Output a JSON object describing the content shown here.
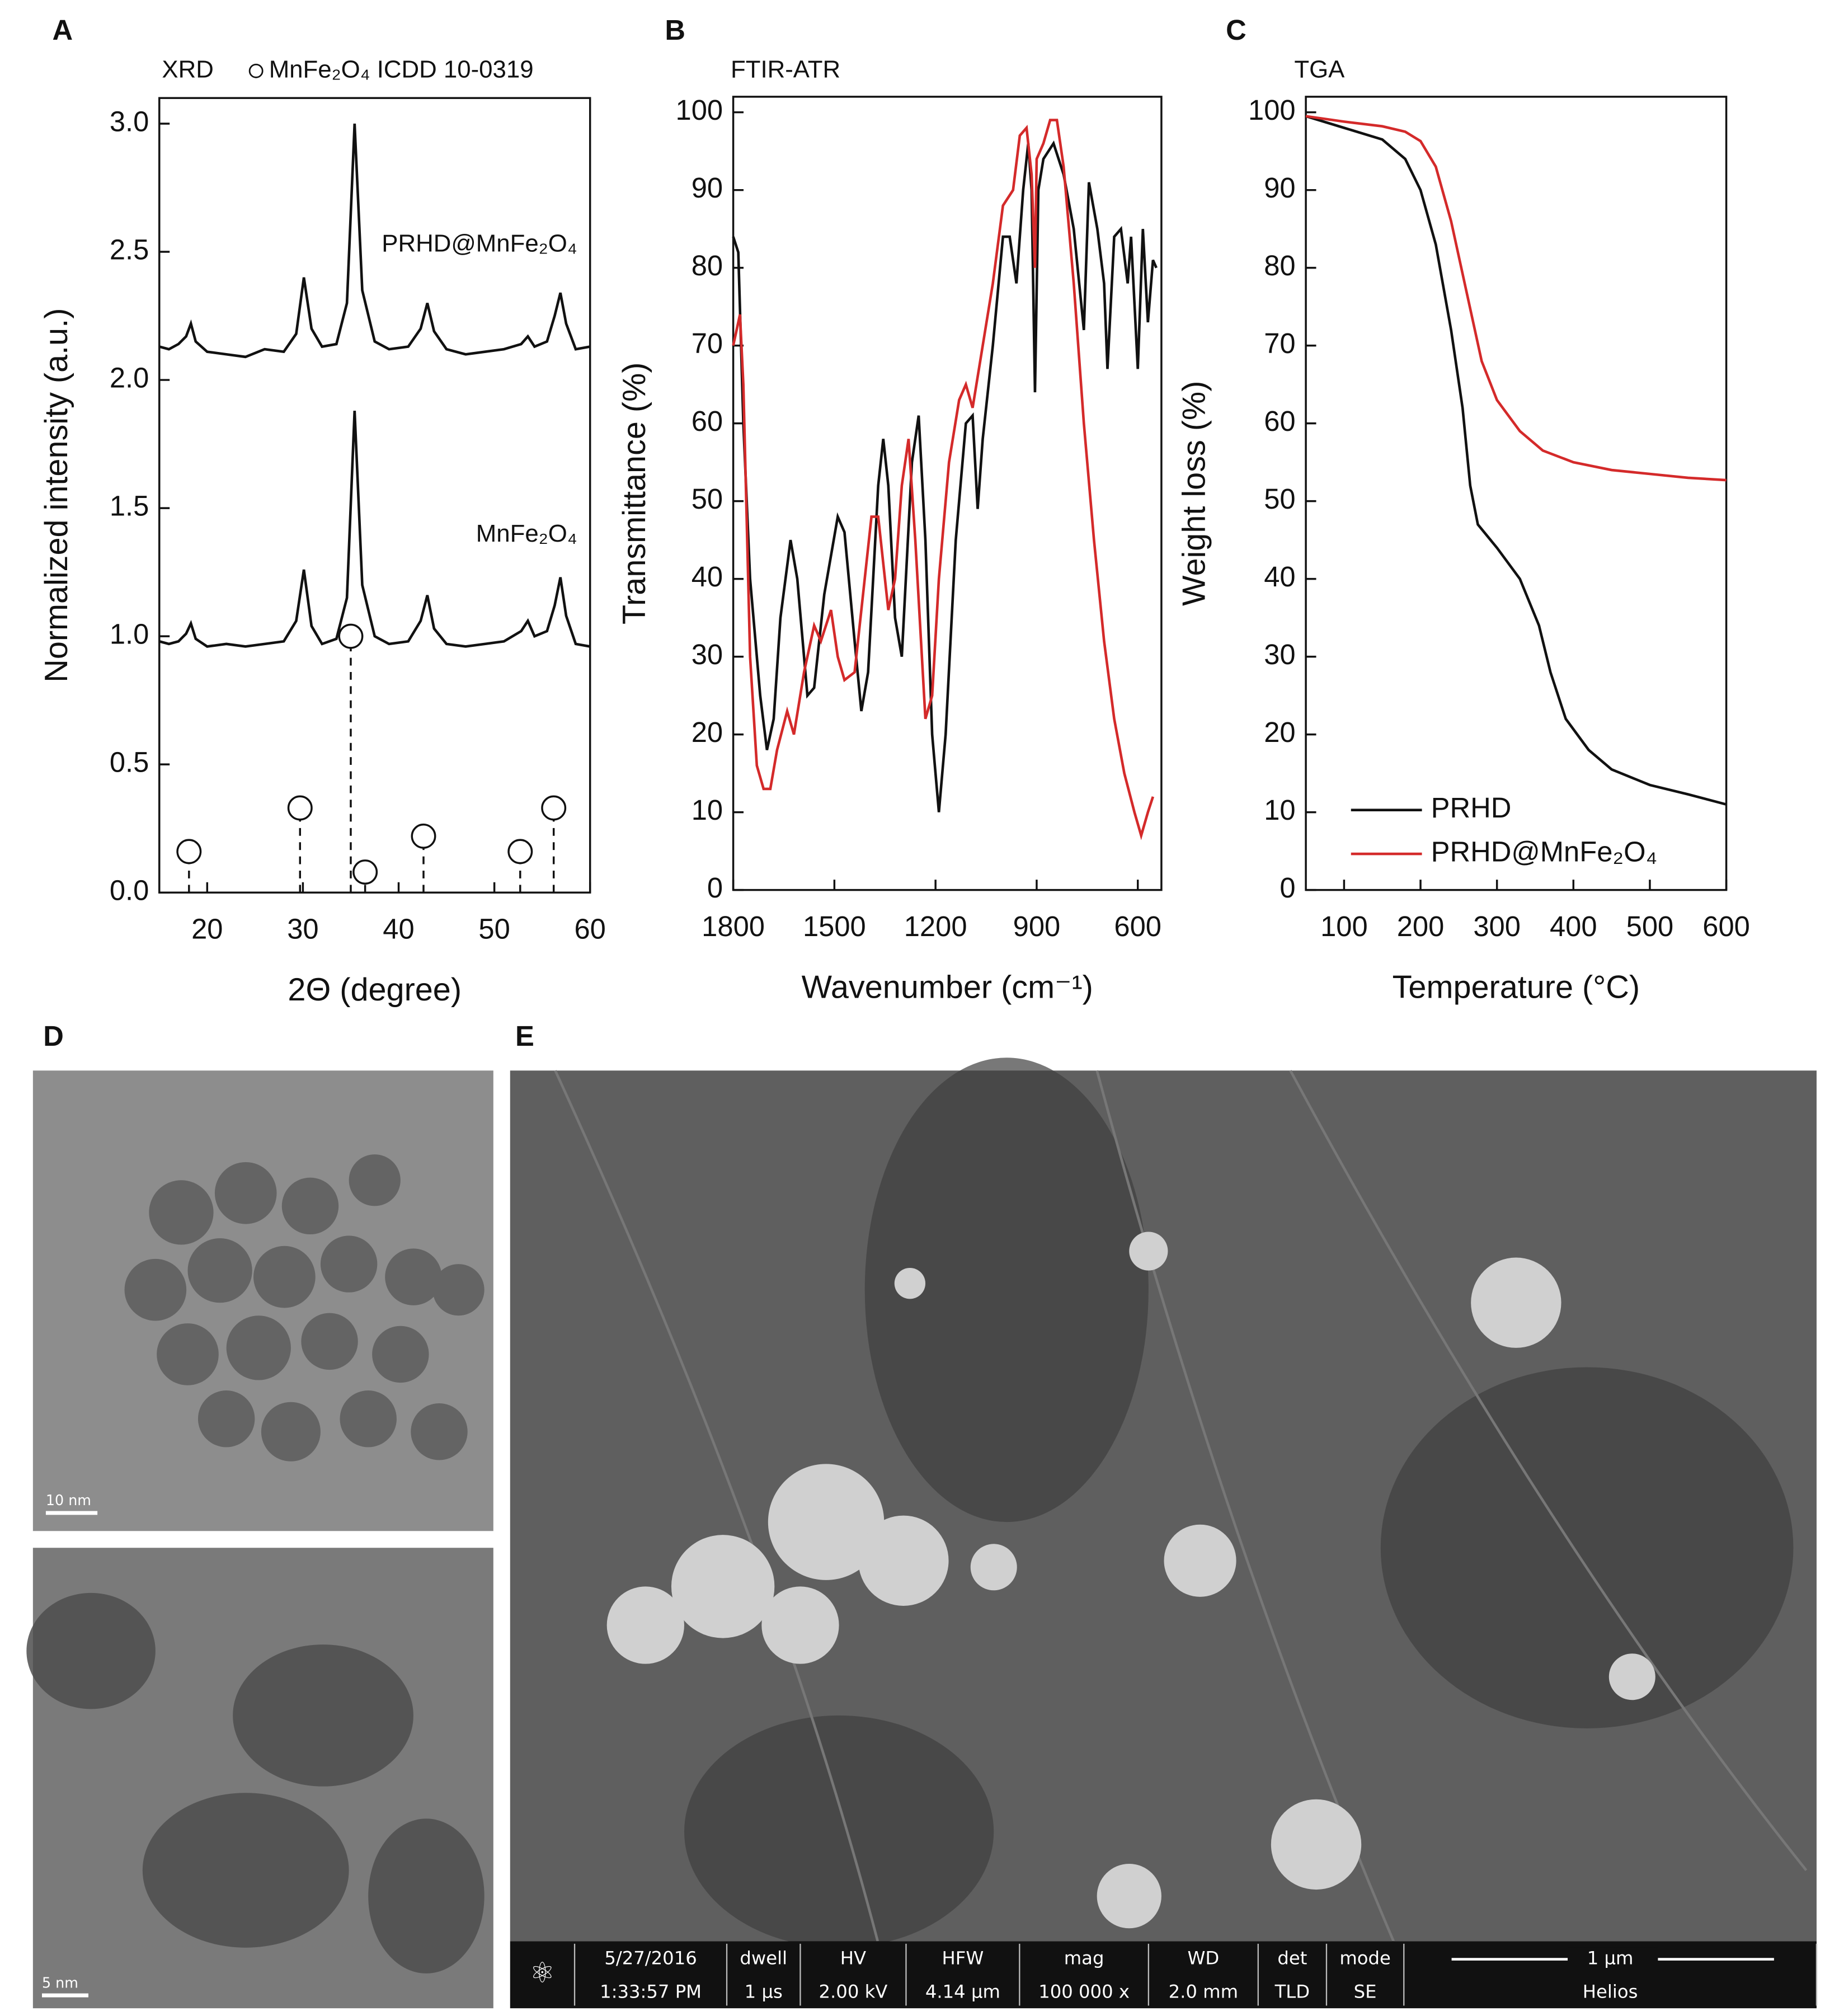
{
  "chart_data": [
    {
      "type": "line",
      "panel": "A",
      "title": "XRD",
      "xlabel": "2Θ (degree)",
      "ylabel": "Normalized intensity (a.u.)",
      "xlim": [
        15,
        60
      ],
      "xticks": [
        20,
        30,
        40,
        50,
        60
      ],
      "ylim": [
        0,
        3.1
      ],
      "yticks": [
        {
          "value": 0,
          "label": "0.0"
        },
        0.5,
        {
          "value": 1,
          "label": "1.0"
        },
        1.5,
        {
          "value": 2,
          "label": "2.0"
        },
        2.5,
        {
          "value": 3,
          "label": "3.0"
        }
      ],
      "series": [
        {
          "name": "PRHD@MnFe₂O₄",
          "color": "#111111",
          "x": [
            15,
            16,
            17,
            17.8,
            18.3,
            18.8,
            20,
            22,
            24,
            26,
            28,
            29.3,
            30.1,
            30.9,
            32,
            33.5,
            34.6,
            35.4,
            36.2,
            37.5,
            39,
            41,
            42.3,
            43,
            43.7,
            45,
            47,
            49,
            51,
            52.8,
            53.5,
            54.2,
            55.5,
            56.3,
            56.9,
            57.5,
            58.5,
            60
          ],
          "values": [
            2.13,
            2.12,
            2.14,
            2.17,
            2.22,
            2.15,
            2.11,
            2.1,
            2.09,
            2.12,
            2.11,
            2.18,
            2.4,
            2.2,
            2.13,
            2.14,
            2.3,
            3.0,
            2.35,
            2.15,
            2.12,
            2.13,
            2.2,
            2.3,
            2.19,
            2.12,
            2.1,
            2.11,
            2.12,
            2.14,
            2.17,
            2.13,
            2.15,
            2.25,
            2.34,
            2.22,
            2.12,
            2.13
          ]
        },
        {
          "name": "MnFe₂O₄",
          "color": "#111111",
          "x": [
            15,
            16,
            17,
            17.8,
            18.3,
            18.8,
            20,
            22,
            24,
            26,
            28,
            29.3,
            30.1,
            30.9,
            32,
            33.5,
            34.6,
            35.4,
            36.2,
            37.5,
            39,
            41,
            42.3,
            43,
            43.7,
            45,
            47,
            49,
            51,
            52.8,
            53.5,
            54.2,
            55.5,
            56.3,
            56.9,
            57.5,
            58.5,
            60
          ],
          "values": [
            0.98,
            0.97,
            0.98,
            1.01,
            1.05,
            0.99,
            0.96,
            0.97,
            0.96,
            0.97,
            0.98,
            1.06,
            1.26,
            1.04,
            0.97,
            0.99,
            1.15,
            1.88,
            1.2,
            1.0,
            0.97,
            0.98,
            1.06,
            1.16,
            1.03,
            0.97,
            0.96,
            0.97,
            0.98,
            1.02,
            1.06,
            1.0,
            1.02,
            1.12,
            1.23,
            1.08,
            0.97,
            0.96
          ]
        },
        {
          "name": "MnFe₂O₄ ICDD 10-0319",
          "color": "#111111",
          "marker": "circle",
          "x": [
            18.1,
            29.7,
            35.0,
            36.5,
            42.6,
            52.7,
            56.2
          ],
          "values": [
            0.16,
            0.33,
            1.0,
            0.08,
            0.22,
            0.16,
            0.33
          ]
        }
      ]
    },
    {
      "type": "line",
      "panel": "B",
      "title": "FTIR-ATR",
      "xlabel": "Wavenumber (cm⁻¹)",
      "ylabel": "Transmittance (%)",
      "xlim": [
        1800,
        530
      ],
      "xticks": [
        1800,
        1500,
        1200,
        900,
        600
      ],
      "ylim": [
        0,
        102
      ],
      "yticks": [
        0,
        10,
        20,
        30,
        40,
        50,
        60,
        70,
        80,
        90,
        100
      ],
      "series": [
        {
          "color": "#111111",
          "x": [
            1800,
            1785,
            1770,
            1750,
            1720,
            1700,
            1680,
            1660,
            1630,
            1610,
            1580,
            1560,
            1530,
            1490,
            1470,
            1440,
            1420,
            1400,
            1370,
            1355,
            1340,
            1320,
            1300,
            1270,
            1250,
            1230,
            1210,
            1190,
            1170,
            1140,
            1110,
            1090,
            1075,
            1060,
            1030,
            1000,
            980,
            960,
            940,
            925,
            915,
            905,
            895,
            880,
            850,
            820,
            790,
            760,
            745,
            720,
            700,
            690,
            670,
            650,
            630,
            620,
            600,
            585,
            570,
            555,
            545
          ],
          "values": [
            84,
            82,
            60,
            40,
            25,
            18,
            22,
            35,
            45,
            40,
            25,
            26,
            38,
            48,
            46,
            32,
            23,
            28,
            52,
            58,
            52,
            35,
            30,
            55,
            61,
            45,
            20,
            10,
            20,
            45,
            60,
            61,
            49,
            58,
            70,
            84,
            84,
            78,
            90,
            96,
            90,
            64,
            90,
            94,
            96,
            92,
            85,
            72,
            91,
            85,
            78,
            67,
            84,
            85,
            78,
            84,
            67,
            85,
            73,
            81,
            80
          ]
        },
        {
          "color": "#d42a2a",
          "x": [
            1800,
            1780,
            1770,
            1750,
            1730,
            1710,
            1690,
            1670,
            1640,
            1620,
            1590,
            1560,
            1540,
            1510,
            1490,
            1470,
            1440,
            1410,
            1390,
            1370,
            1340,
            1320,
            1300,
            1280,
            1260,
            1230,
            1210,
            1190,
            1160,
            1130,
            1110,
            1090,
            1060,
            1030,
            1000,
            970,
            950,
            930,
            915,
            905,
            900,
            880,
            860,
            840,
            820,
            790,
            760,
            730,
            700,
            670,
            640,
            610,
            590,
            570,
            555
          ],
          "values": [
            70,
            74,
            65,
            30,
            16,
            13,
            13,
            18,
            23,
            20,
            28,
            34,
            32,
            36,
            30,
            27,
            28,
            40,
            48,
            48,
            36,
            40,
            52,
            58,
            45,
            22,
            25,
            40,
            55,
            63,
            65,
            62,
            70,
            78,
            88,
            90,
            97,
            98,
            92,
            80,
            94,
            96,
            99,
            99,
            93,
            78,
            60,
            45,
            32,
            22,
            15,
            10,
            7,
            10,
            12
          ]
        }
      ]
    },
    {
      "type": "line",
      "panel": "C",
      "title": "TGA",
      "xlabel": "Temperature (°C)",
      "ylabel": "Weight loss (%)",
      "xlim": [
        50,
        600
      ],
      "xticks": [
        100,
        200,
        300,
        400,
        500,
        600
      ],
      "ylim": [
        0,
        102
      ],
      "yticks": [
        0,
        10,
        20,
        30,
        40,
        50,
        60,
        70,
        80,
        90,
        100
      ],
      "legend": "lower left",
      "series": [
        {
          "name": "PRHD",
          "color": "#111111",
          "x": [
            50,
            100,
            150,
            180,
            200,
            220,
            240,
            255,
            265,
            275,
            300,
            330,
            355,
            370,
            390,
            420,
            450,
            500,
            550,
            600
          ],
          "values": [
            99.5,
            98,
            96.5,
            94,
            90,
            83,
            72,
            62,
            52,
            47,
            44,
            40,
            34,
            28,
            22,
            18,
            15.5,
            13.5,
            12.3,
            11
          ]
        },
        {
          "name": "PRHD@MnFe₂O₄",
          "color": "#d42a2a",
          "x": [
            50,
            100,
            150,
            180,
            200,
            220,
            240,
            260,
            280,
            300,
            330,
            360,
            400,
            450,
            500,
            550,
            600
          ],
          "values": [
            99.5,
            98.8,
            98.2,
            97.5,
            96.3,
            93,
            86,
            77,
            68,
            63,
            59,
            56.5,
            55,
            54,
            53.5,
            53,
            52.7
          ]
        }
      ]
    }
  ],
  "micrographs": {
    "tem": {
      "panel": "D",
      "scale_top": "10 nm",
      "scale_bottom": "5 nm"
    },
    "sem": {
      "panel": "E",
      "info_bar": [
        [
          "5/27/2016",
          "1:33:57 PM"
        ],
        [
          "dwell",
          "1 µs"
        ],
        [
          "HV",
          "2.00 kV"
        ],
        [
          "HFW",
          "4.14 µm"
        ],
        [
          "mag",
          "100 000 x"
        ],
        [
          "WD",
          "2.0 mm"
        ],
        [
          "det",
          "TLD"
        ],
        [
          "mode",
          "SE"
        ],
        [
          "1 µm",
          "Helios"
        ]
      ]
    }
  }
}
